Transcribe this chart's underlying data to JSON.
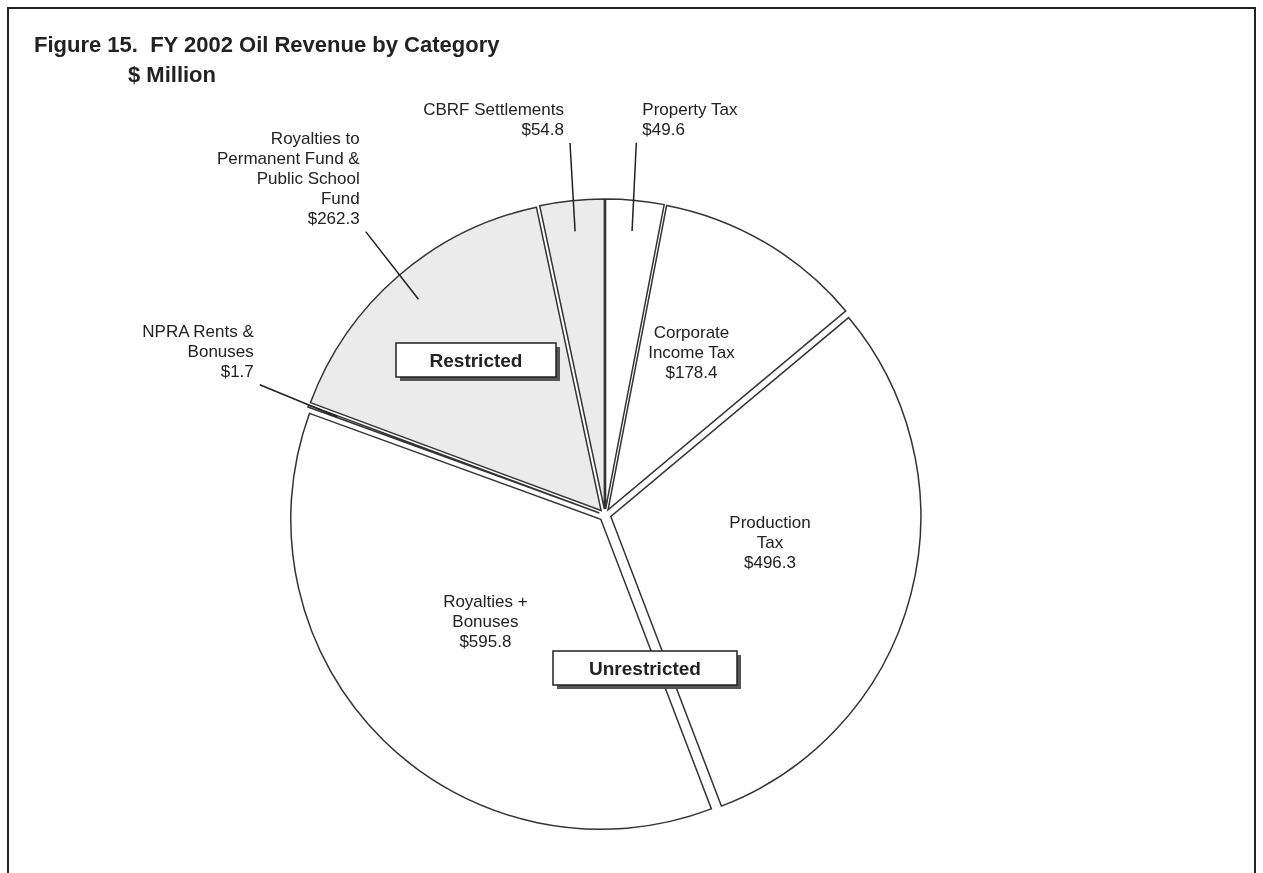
{
  "chart_data": {
    "type": "pie",
    "title": "Figure 15.  FY 2002 Oil Revenue by Category",
    "subtitle": "$ Million",
    "categories": [
      "Property Tax",
      "Corporate Income Tax",
      "Production Tax",
      "Royalties + Bonuses",
      "NPRA Rents & Bonuses",
      "Royalties to Permanent Fund & Public School Fund",
      "CBRF Settlements"
    ],
    "values": [
      49.6,
      178.4,
      496.3,
      595.8,
      1.7,
      262.3,
      54.8
    ],
    "value_labels": [
      "$49.6",
      "$178.4",
      "$496.3",
      "$595.8",
      "$1.7",
      "$262.3",
      "$54.8"
    ],
    "colors": [
      "#ffffff",
      "#ffffff",
      "#ffffff",
      "#ffffff",
      "#ffffff",
      "#ebebeb",
      "#ebebeb"
    ],
    "annotations": [
      "Restricted",
      "Unrestricted"
    ]
  }
}
